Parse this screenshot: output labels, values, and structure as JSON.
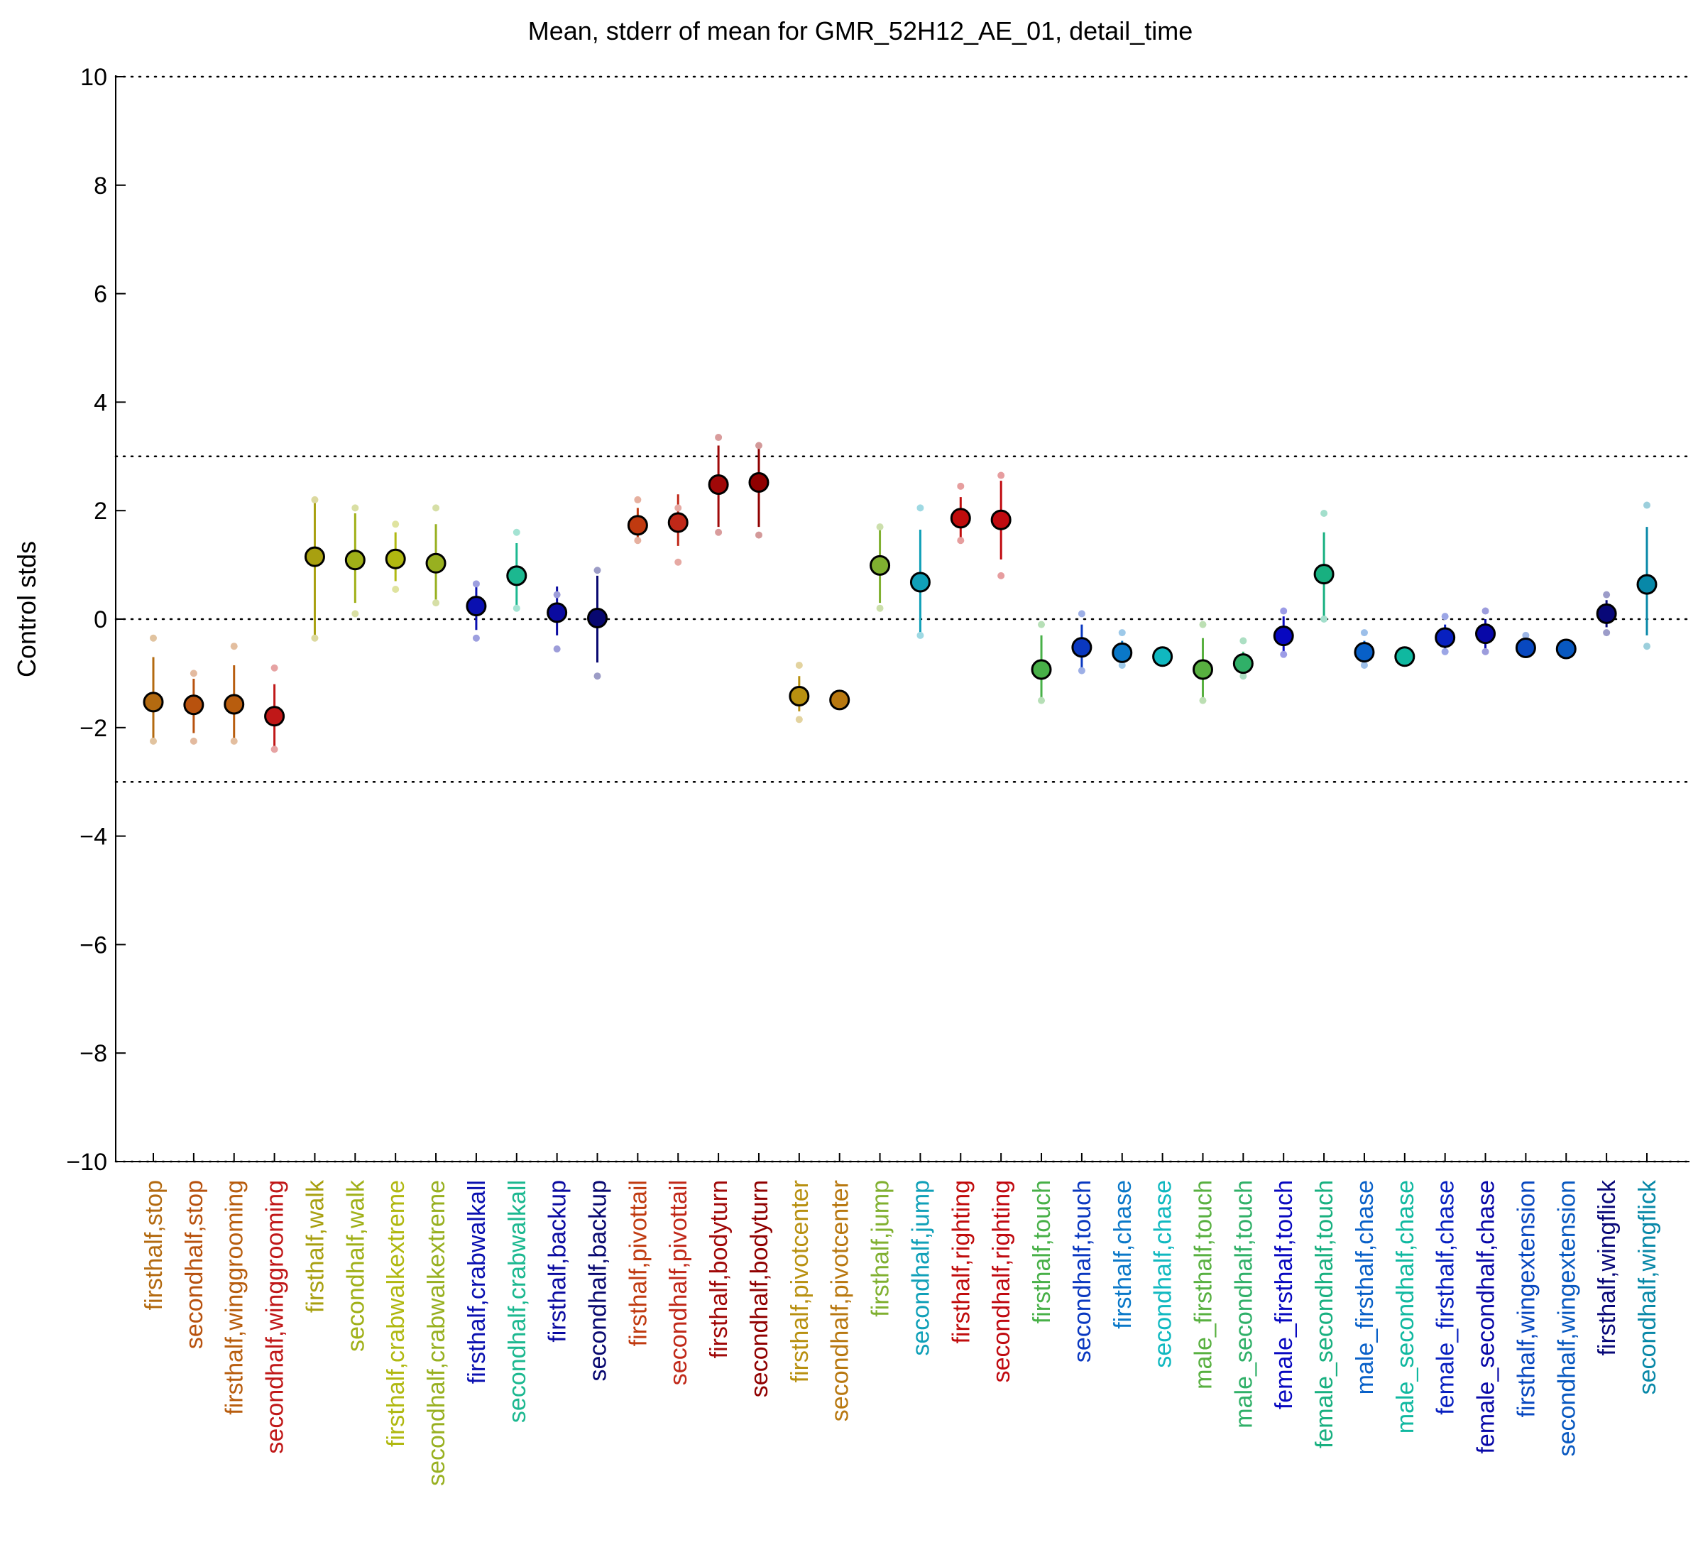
{
  "chart_data": {
    "type": "scatter",
    "title": "Mean, stderr of mean for GMR_52H12_AE_01, detail_time",
    "xlabel": "",
    "ylabel": "Control stds",
    "ylim": [
      -10,
      10
    ],
    "yticks": [
      -10,
      -8,
      -6,
      -4,
      -2,
      0,
      2,
      4,
      6,
      8,
      10
    ],
    "ytick_labels": [
      "−10",
      "−8",
      "−6",
      "−4",
      "−2",
      "0",
      "2",
      "4",
      "6",
      "8",
      "10"
    ],
    "reference_lines": [
      10,
      3,
      0,
      -3,
      -10
    ],
    "grid": false,
    "legend": "none",
    "categories": [
      "firsthalf,stop",
      "secondhalf,stop",
      "firsthalf,winggrooming",
      "secondhalf,winggrooming",
      "firsthalf,walk",
      "secondhalf,walk",
      "firsthalf,crabwalkextreme",
      "secondhalf,crabwalkextreme",
      "firsthalf,crabwalkall",
      "secondhalf,crabwalkall",
      "firsthalf,backup",
      "secondhalf,backup",
      "firsthalf,pivottail",
      "secondhalf,pivottail",
      "firsthalf,bodyturn",
      "secondhalf,bodyturn",
      "firsthalf,pivotcenter",
      "secondhalf,pivotcenter",
      "firsthalf,jump",
      "secondhalf,jump",
      "firsthalf,righting",
      "secondhalf,righting",
      "firsthalf,touch",
      "secondhalf,touch",
      "firsthalf,chase",
      "secondhalf,chase",
      "male_firsthalf,touch",
      "male_secondhalf,touch",
      "female_firsthalf,touch",
      "female_secondhalf,touch",
      "male_firsthalf,chase",
      "male_secondhalf,chase",
      "female_firsthalf,chase",
      "female_secondhalf,chase",
      "firsthalf,wingextension",
      "secondhalf,wingextension",
      "firsthalf,wingflick",
      "secondhalf,wingflick"
    ],
    "colors": [
      "#b36a10",
      "#b8520e",
      "#b85d0e",
      "#c01818",
      "#a8a010",
      "#a0b018",
      "#b0b810",
      "#98b020",
      "#0a10b0",
      "#1cb890",
      "#0a0aa0",
      "#080870",
      "#c03a10",
      "#c02818",
      "#a00808",
      "#900000",
      "#b89010",
      "#b87810",
      "#80b030",
      "#10a0b8",
      "#c00c0c",
      "#c00a10",
      "#48b048",
      "#0a38c0",
      "#0a78c8",
      "#10b8c0",
      "#58b040",
      "#30b068",
      "#0808c0",
      "#18b080",
      "#0860c8",
      "#10b8a0",
      "#0820c0",
      "#0808a8",
      "#0848c0",
      "#0858c0",
      "#080878",
      "#0888a8"
    ],
    "series": [
      {
        "values": [
          -1.53,
          -1.58,
          -1.57,
          -1.79,
          1.15,
          1.09,
          1.11,
          1.03,
          0.24,
          0.8,
          0.12,
          0.02,
          1.73,
          1.78,
          2.48,
          2.52,
          -1.42,
          -1.49,
          0.99,
          0.68,
          1.86,
          1.83,
          -0.93,
          -0.52,
          -0.62,
          -0.69,
          -0.93,
          -0.82,
          -0.31,
          0.83,
          -0.61,
          -0.69,
          -0.34,
          -0.27,
          -0.53,
          -0.55,
          0.1,
          0.64
        ],
        "stderr_low": [
          -2.3,
          -2.1,
          -2.3,
          -2.4,
          -0.3,
          0.3,
          0.7,
          0.3,
          -0.2,
          0.2,
          -0.3,
          -0.8,
          1.4,
          1.35,
          1.7,
          1.7,
          -1.7,
          -1.55,
          0.3,
          -0.3,
          1.5,
          1.1,
          -1.5,
          -0.9,
          -0.8,
          -0.75,
          -1.5,
          -1.0,
          -0.6,
          0.0,
          -0.8,
          -0.75,
          -0.55,
          -0.55,
          -0.6,
          -0.6,
          -0.15,
          -0.3
        ],
        "stderr_high": [
          -0.7,
          -1.1,
          -0.85,
          -1.2,
          2.2,
          1.95,
          1.6,
          1.75,
          0.65,
          1.4,
          0.6,
          0.8,
          2.05,
          2.3,
          3.2,
          3.2,
          -1.05,
          -1.45,
          1.65,
          1.65,
          2.25,
          2.55,
          -0.3,
          -0.1,
          -0.4,
          -0.62,
          -0.35,
          -0.6,
          0.05,
          1.6,
          -0.4,
          -0.62,
          -0.1,
          0.0,
          -0.45,
          -0.5,
          0.35,
          1.7
        ],
        "range_low": [
          -2.25,
          -2.25,
          -2.25,
          -2.4,
          -0.35,
          0.1,
          0.55,
          0.3,
          -0.35,
          0.2,
          -0.55,
          -1.05,
          1.45,
          1.05,
          1.6,
          1.55,
          -1.85,
          -1.55,
          0.2,
          -0.3,
          1.45,
          0.8,
          -1.5,
          -0.95,
          -0.85,
          -0.75,
          -1.5,
          -1.05,
          -0.65,
          0.0,
          -0.85,
          -0.75,
          -0.6,
          -0.6,
          -0.6,
          -0.6,
          -0.25,
          -0.5
        ],
        "range_high": [
          -0.35,
          -1.0,
          -0.5,
          -0.9,
          2.2,
          2.05,
          1.75,
          2.05,
          0.65,
          1.6,
          0.45,
          0.9,
          2.2,
          2.05,
          3.35,
          3.2,
          -0.85,
          -1.45,
          1.7,
          2.05,
          2.45,
          2.65,
          -0.1,
          0.1,
          -0.25,
          -0.62,
          -0.1,
          -0.4,
          0.15,
          1.95,
          -0.25,
          -0.62,
          0.05,
          0.15,
          -0.3,
          -0.5,
          0.45,
          2.1
        ]
      }
    ]
  }
}
